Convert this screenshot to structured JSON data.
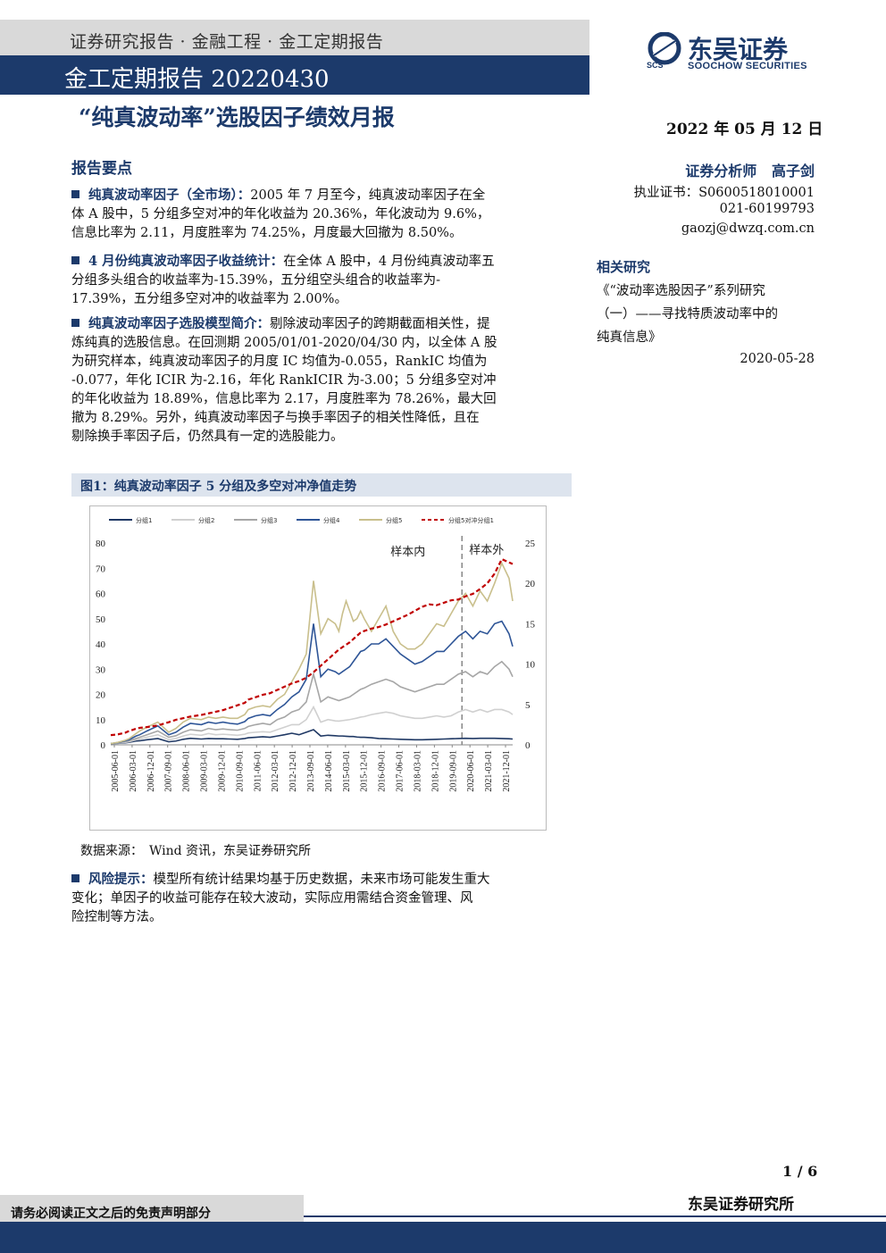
{
  "header": {
    "breadcrumb": "证券研究报告 · 金融工程 · 金工定期报告",
    "report_type": "金工定期报告 20220430",
    "brand_cn": "东吴证券",
    "brand_en": "SOOCHOW SECURITIES",
    "brand_mark": "SCS"
  },
  "title": "“纯真波动率”选股因子绩效月报",
  "date": "2022 年 05 月 12 日",
  "analyst": {
    "role": "证券分析师",
    "name": "高子剑",
    "license": "执业证书：S0600518010001",
    "phone": "021-60199793",
    "email": "gaozj@dwzq.com.cn"
  },
  "related": {
    "heading": "相关研究",
    "line1": "《“波动率选股因子”系列研究",
    "line2": "（一）——寻找特质波动率中的",
    "line3": "纯真信息》",
    "date": "2020-05-28"
  },
  "key_points": {
    "heading": "报告要点",
    "items": [
      {
        "lead": "纯真波动率因子（全市场）：",
        "lines": [
          "2005 年 7 月至今，纯真波动率因子在全",
          "体 A 股中，5 分组多空对冲的年化收益为 20.36%，年化波动为 9.6%，",
          "信息比率为 2.11，月度胜率为 74.25%，月度最大回撤为 8.50%。"
        ]
      },
      {
        "lead": "4 月份纯真波动率因子收益统计：",
        "lines": [
          "在全体 A 股中，4 月份纯真波动率五",
          "分组多头组合的收益率为-15.39%，五分组空头组合的收益率为-",
          "17.39%，五分组多空对冲的收益率为 2.00%。"
        ]
      },
      {
        "lead": "纯真波动率因子选股模型简介：",
        "lines": [
          "剔除波动率因子的跨期截面相关性，提",
          "炼纯真的选股信息。在回测期 2005/01/01-2020/04/30 内，以全体 A 股",
          "为研究样本，纯真波动率因子的月度 IC 均值为-0.055，RankIC 均值为",
          "-0.077，年化 ICIR 为-2.16，年化 RankICIR 为-3.00；5 分组多空对冲",
          "的年化收益为 18.89%，信息比率为 2.17，月度胜率为 78.26%，最大回",
          "撤为 8.29%。另外，纯真波动率因子与换手率因子的相关性降低，且在",
          "剔除换手率因子后，仍然具有一定的选股能力。"
        ]
      }
    ]
  },
  "figure": {
    "caption": "图1：纯真波动率因子 5 分组及多空对冲净值走势",
    "source": "数据来源：　Wind 资讯，东吴证券研究所"
  },
  "risk": {
    "lead": "风险提示：",
    "lines": [
      "模型所有统计结果均基于历史数据，未来市场可能发生重大",
      "变化；单因子的收益可能存在较大波动，实际应用需结合资金管理、风",
      "险控制等方法。"
    ]
  },
  "footer": {
    "page": "1 / 6",
    "disclaimer": "请务必阅读正文之后的免责声明部分",
    "org": "东吴证券研究所"
  },
  "colors": {
    "navy": "#1c3a6b",
    "g1": "#1f3864",
    "g2": "#d0d0d0",
    "g3": "#a6a6a6",
    "g4": "#2e5597",
    "g5": "#c9bf8c",
    "ls": "#c00000"
  },
  "chart_data": {
    "type": "line",
    "annotations": [
      "样本内",
      "样本外"
    ],
    "split_x": "2020-06-01",
    "x_ticks": [
      "2005-06-01",
      "2006-03-01",
      "2006-12-01",
      "2007-09-01",
      "2008-06-01",
      "2009-03-01",
      "2009-12-01",
      "2010-09-01",
      "2011-06-01",
      "2012-03-01",
      "2012-12-01",
      "2013-09-01",
      "2014-06-01",
      "2015-03-01",
      "2015-12-01",
      "2016-09-01",
      "2017-06-01",
      "2018-03-01",
      "2018-12-01",
      "2019-09-01",
      "2020-06-01",
      "2021-03-01",
      "2021-12-01"
    ],
    "y_left": {
      "ticks": [
        0,
        10,
        20,
        30,
        40,
        50,
        60,
        70,
        80
      ],
      "ylim": [
        0,
        80
      ]
    },
    "y_right": {
      "ticks": [
        0,
        5,
        10,
        15,
        20,
        25
      ],
      "ylim": [
        0,
        25
      ]
    },
    "x_index": [
      0,
      2,
      4,
      5,
      7,
      8,
      10,
      13,
      16,
      18,
      20,
      22,
      25,
      27,
      29,
      31,
      33,
      35,
      37,
      38,
      40,
      42,
      44,
      46,
      48,
      50,
      52,
      54,
      56,
      58,
      60,
      62,
      63,
      64,
      65,
      66,
      67,
      68,
      69,
      70,
      72,
      74,
      76,
      78,
      80,
      82,
      84,
      86,
      88,
      90,
      92,
      94,
      96,
      98,
      100,
      102,
      104,
      106,
      108,
      110,
      111
    ],
    "series": [
      {
        "name": "分组1",
        "axis": "left",
        "values": [
          0.5,
          0.6,
          0.8,
          1.0,
          1.5,
          1.6,
          2,
          2.5,
          1.2,
          1.5,
          2.2,
          2.6,
          2.3,
          2.5,
          2.4,
          2.4,
          2.3,
          2.2,
          2.5,
          2.8,
          3,
          3.2,
          3,
          3.5,
          4,
          4.6,
          4,
          5,
          6,
          3.5,
          3.8,
          3.6,
          3.5,
          3.5,
          3.4,
          3.3,
          3.3,
          3.1,
          3,
          3,
          2.8,
          2.5,
          2.4,
          2.3,
          2.2,
          2.1,
          2,
          2,
          2.1,
          2.2,
          2.3,
          2.4,
          2.5,
          2.6,
          2.5,
          2.6,
          2.6,
          2.6,
          2.5,
          2.4,
          2.3
        ]
      },
      {
        "name": "分组2",
        "axis": "left",
        "values": [
          0.5,
          0.7,
          1,
          1.2,
          2,
          2.3,
          3,
          4,
          2,
          2.5,
          3.5,
          4.2,
          3.8,
          4.5,
          4,
          4.2,
          4,
          3.8,
          4.2,
          4.7,
          5,
          5.2,
          5,
          6,
          7,
          8,
          8,
          10,
          15,
          9,
          10,
          9.5,
          9.4,
          9.6,
          9.8,
          10,
          10.3,
          10.6,
          11,
          11.2,
          12,
          12.5,
          13,
          12.5,
          11.5,
          11,
          10.5,
          10.5,
          11,
          11.5,
          11,
          11.5,
          13,
          14,
          13,
          14,
          13,
          14,
          14,
          13,
          12
        ]
      },
      {
        "name": "分组3",
        "axis": "left",
        "values": [
          0.5,
          0.8,
          1.3,
          1.6,
          2.5,
          3,
          4,
          5.5,
          3,
          3.6,
          5,
          6,
          5.5,
          6.5,
          6,
          6.3,
          6,
          5.8,
          6.5,
          7.3,
          8,
          8.5,
          8,
          10,
          11,
          13,
          14,
          17,
          28,
          17,
          19,
          18,
          17.5,
          18,
          18.5,
          19,
          20,
          21,
          22,
          22.5,
          24,
          25,
          26,
          25,
          23,
          22,
          21,
          22,
          23,
          24,
          24,
          26,
          28,
          29,
          27,
          29,
          28,
          31,
          33,
          30,
          27
        ]
      },
      {
        "name": "分组4",
        "axis": "left",
        "values": [
          0.5,
          0.9,
          1.6,
          2,
          3.5,
          4,
          5.5,
          7.5,
          4,
          5,
          7,
          8.5,
          8,
          9,
          8.5,
          9,
          8.5,
          8.2,
          9.2,
          10.5,
          11.5,
          12,
          11.5,
          14,
          16,
          19,
          21,
          26,
          48,
          27,
          30,
          29,
          28,
          29,
          30,
          31,
          33,
          35,
          37,
          37.5,
          40,
          40,
          42,
          39,
          36,
          34,
          32,
          33,
          35,
          37,
          37,
          40,
          43,
          45,
          42,
          45,
          44,
          48,
          49,
          44,
          39
        ]
      },
      {
        "name": "分组5",
        "axis": "left",
        "values": [
          0.5,
          1,
          1.8,
          2.4,
          4.5,
          5.5,
          7,
          9,
          5,
          6.5,
          9,
          10.5,
          10,
          11,
          10.5,
          11,
          10.5,
          10.5,
          12,
          14,
          15,
          15.5,
          15,
          18,
          20,
          25,
          30,
          36,
          65,
          44,
          50,
          48,
          45,
          52,
          57,
          53,
          49,
          50,
          53,
          50,
          45,
          50,
          55,
          45,
          40,
          38,
          38,
          40,
          44,
          48,
          47,
          52,
          57,
          60,
          55,
          61,
          57,
          64,
          72,
          66,
          57
        ]
      },
      {
        "name": "分组5对冲分组1",
        "axis": "right",
        "dashed": true,
        "values": [
          1.2,
          1.3,
          1.5,
          1.7,
          2.0,
          2.1,
          2.2,
          2.4,
          2.8,
          3.1,
          3.3,
          3.5,
          3.7,
          3.9,
          4.1,
          4.3,
          4.6,
          4.9,
          5.2,
          5.6,
          5.9,
          6.2,
          6.4,
          6.8,
          7.2,
          7.6,
          7.9,
          8.3,
          9.0,
          9.8,
          10.6,
          11.4,
          11.8,
          12.1,
          12.4,
          12.7,
          13.1,
          13.5,
          13.9,
          14.1,
          14.4,
          14.6,
          14.9,
          15.3,
          15.7,
          16.1,
          16.6,
          17.1,
          17.4,
          17.3,
          17.6,
          17.9,
          18.0,
          18.4,
          18.7,
          19.3,
          20.0,
          21.2,
          23.0,
          22.6,
          22.4
        ]
      }
    ]
  }
}
